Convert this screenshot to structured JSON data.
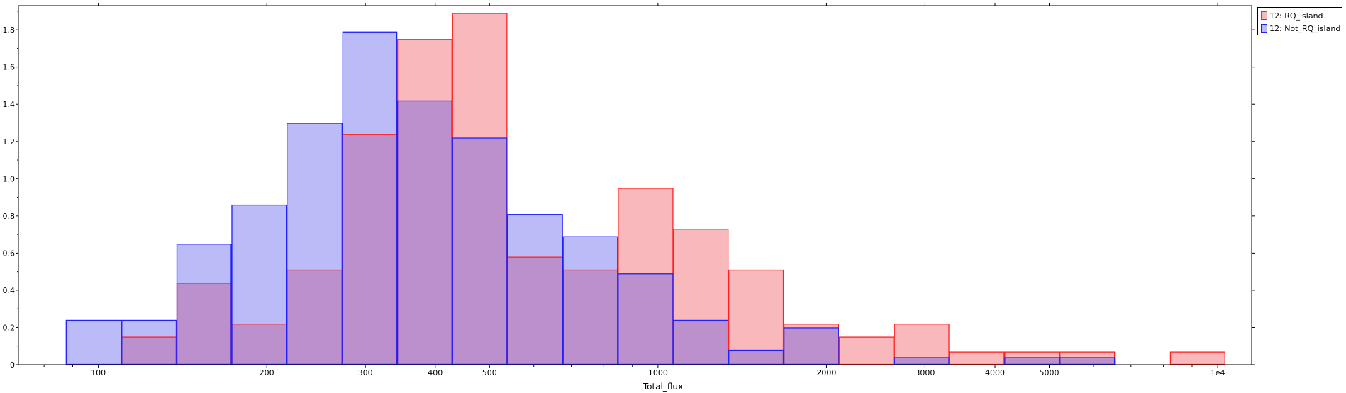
{
  "chart_data": {
    "type": "bar",
    "subtype": "overlapping-histogram",
    "xlabel": "Total_flux",
    "ylabel": "",
    "xscale": "log",
    "xlim": [
      72,
      11500
    ],
    "ylim": [
      0,
      1.93
    ],
    "x_ticks": [
      {
        "value": 100,
        "label": "100"
      },
      {
        "value": 200,
        "label": "200"
      },
      {
        "value": 300,
        "label": "300"
      },
      {
        "value": 400,
        "label": "400"
      },
      {
        "value": 500,
        "label": "500"
      },
      {
        "value": 1000,
        "label": "1000"
      },
      {
        "value": 2000,
        "label": "2000"
      },
      {
        "value": 3000,
        "label": "3000"
      },
      {
        "value": 4000,
        "label": "4000"
      },
      {
        "value": 5000,
        "label": "5000"
      },
      {
        "value": 10000,
        "label": "1e4"
      }
    ],
    "y_ticks": [
      {
        "value": 0,
        "label": "0"
      },
      {
        "value": 0.2,
        "label": "0.2"
      },
      {
        "value": 0.4,
        "label": "0.4"
      },
      {
        "value": 0.6,
        "label": "0.6"
      },
      {
        "value": 0.8,
        "label": "0.8"
      },
      {
        "value": 1.0,
        "label": "1.0"
      },
      {
        "value": 1.2,
        "label": "1.2"
      },
      {
        "value": 1.4,
        "label": "1.4"
      },
      {
        "value": 1.6,
        "label": "1.6"
      },
      {
        "value": 1.8,
        "label": "1.8"
      }
    ],
    "bin_edges": [
      87.5,
      110,
      138,
      173,
      217,
      273,
      342,
      429,
      538,
      676,
      848,
      1065,
      1336,
      1677,
      2104,
      2641,
      3314,
      4159,
      5220,
      6551,
      8221,
      10318
    ],
    "grid": false,
    "legend_position": "top-right-outside",
    "series": [
      {
        "name": "12: RQ_island",
        "fill": "#f9b8bb",
        "stroke": "#ff2020",
        "values": [
          0,
          0.15,
          0.44,
          0.22,
          0.51,
          1.24,
          1.75,
          1.89,
          0.58,
          0.51,
          0.95,
          0.73,
          0.51,
          0.22,
          0.15,
          0.22,
          0.07,
          0.07,
          0.07,
          0,
          0.07
        ]
      },
      {
        "name": "12: Not_RQ_island",
        "fill": "#bbbbf8",
        "stroke": "#2020ff",
        "values": [
          0.24,
          0.24,
          0.65,
          0.86,
          1.3,
          1.79,
          1.42,
          1.22,
          0.81,
          0.69,
          0.49,
          0.24,
          0.08,
          0.2,
          0,
          0.04,
          0,
          0.04,
          0.04,
          0,
          0
        ]
      }
    ],
    "overlap_fill": "#bc90cc"
  }
}
